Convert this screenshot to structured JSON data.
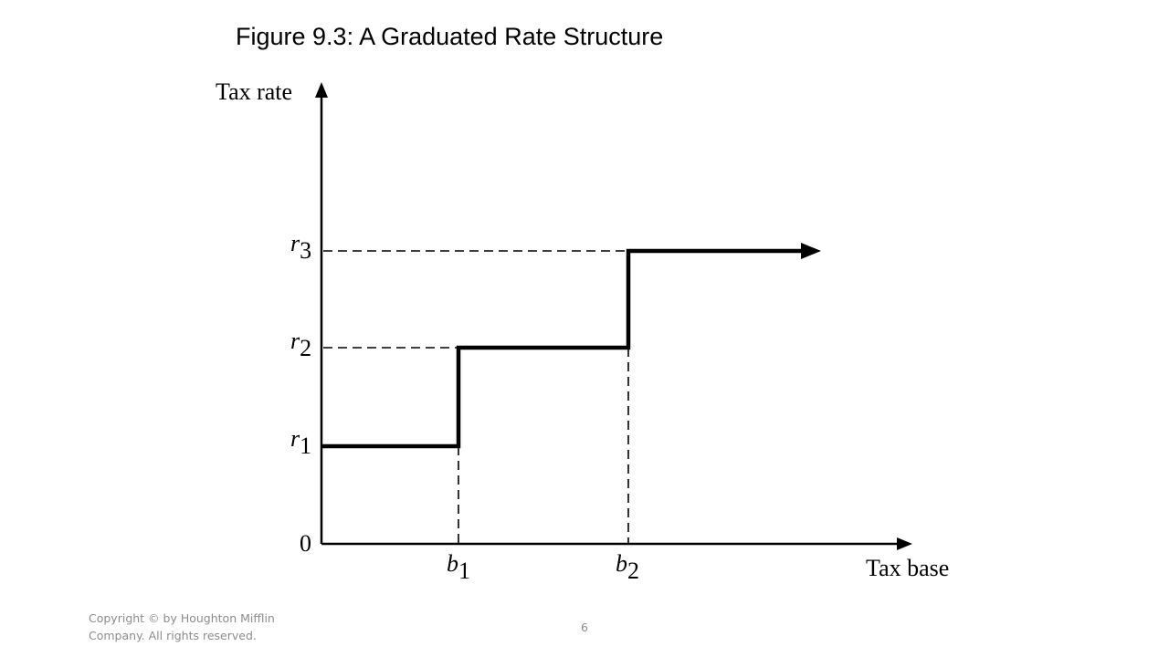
{
  "header": {
    "title": "Figure 9.3:  A Graduated Rate Structure"
  },
  "diagram": {
    "y_axis_label": "Tax rate",
    "x_axis_label": "Tax base",
    "origin_label": "0",
    "rate_labels": [
      {
        "symbol": "r",
        "subscript": "1"
      },
      {
        "symbol": "r",
        "subscript": "2"
      },
      {
        "symbol": "r",
        "subscript": "3"
      }
    ],
    "base_labels": [
      {
        "symbol": "b",
        "subscript": "1"
      },
      {
        "symbol": "b",
        "subscript": "2"
      }
    ]
  },
  "footer": {
    "copyright_lines": [
      "Copyright © by Houghton Mifflin",
      "Company. All rights reserved."
    ],
    "page_number": "6"
  }
}
